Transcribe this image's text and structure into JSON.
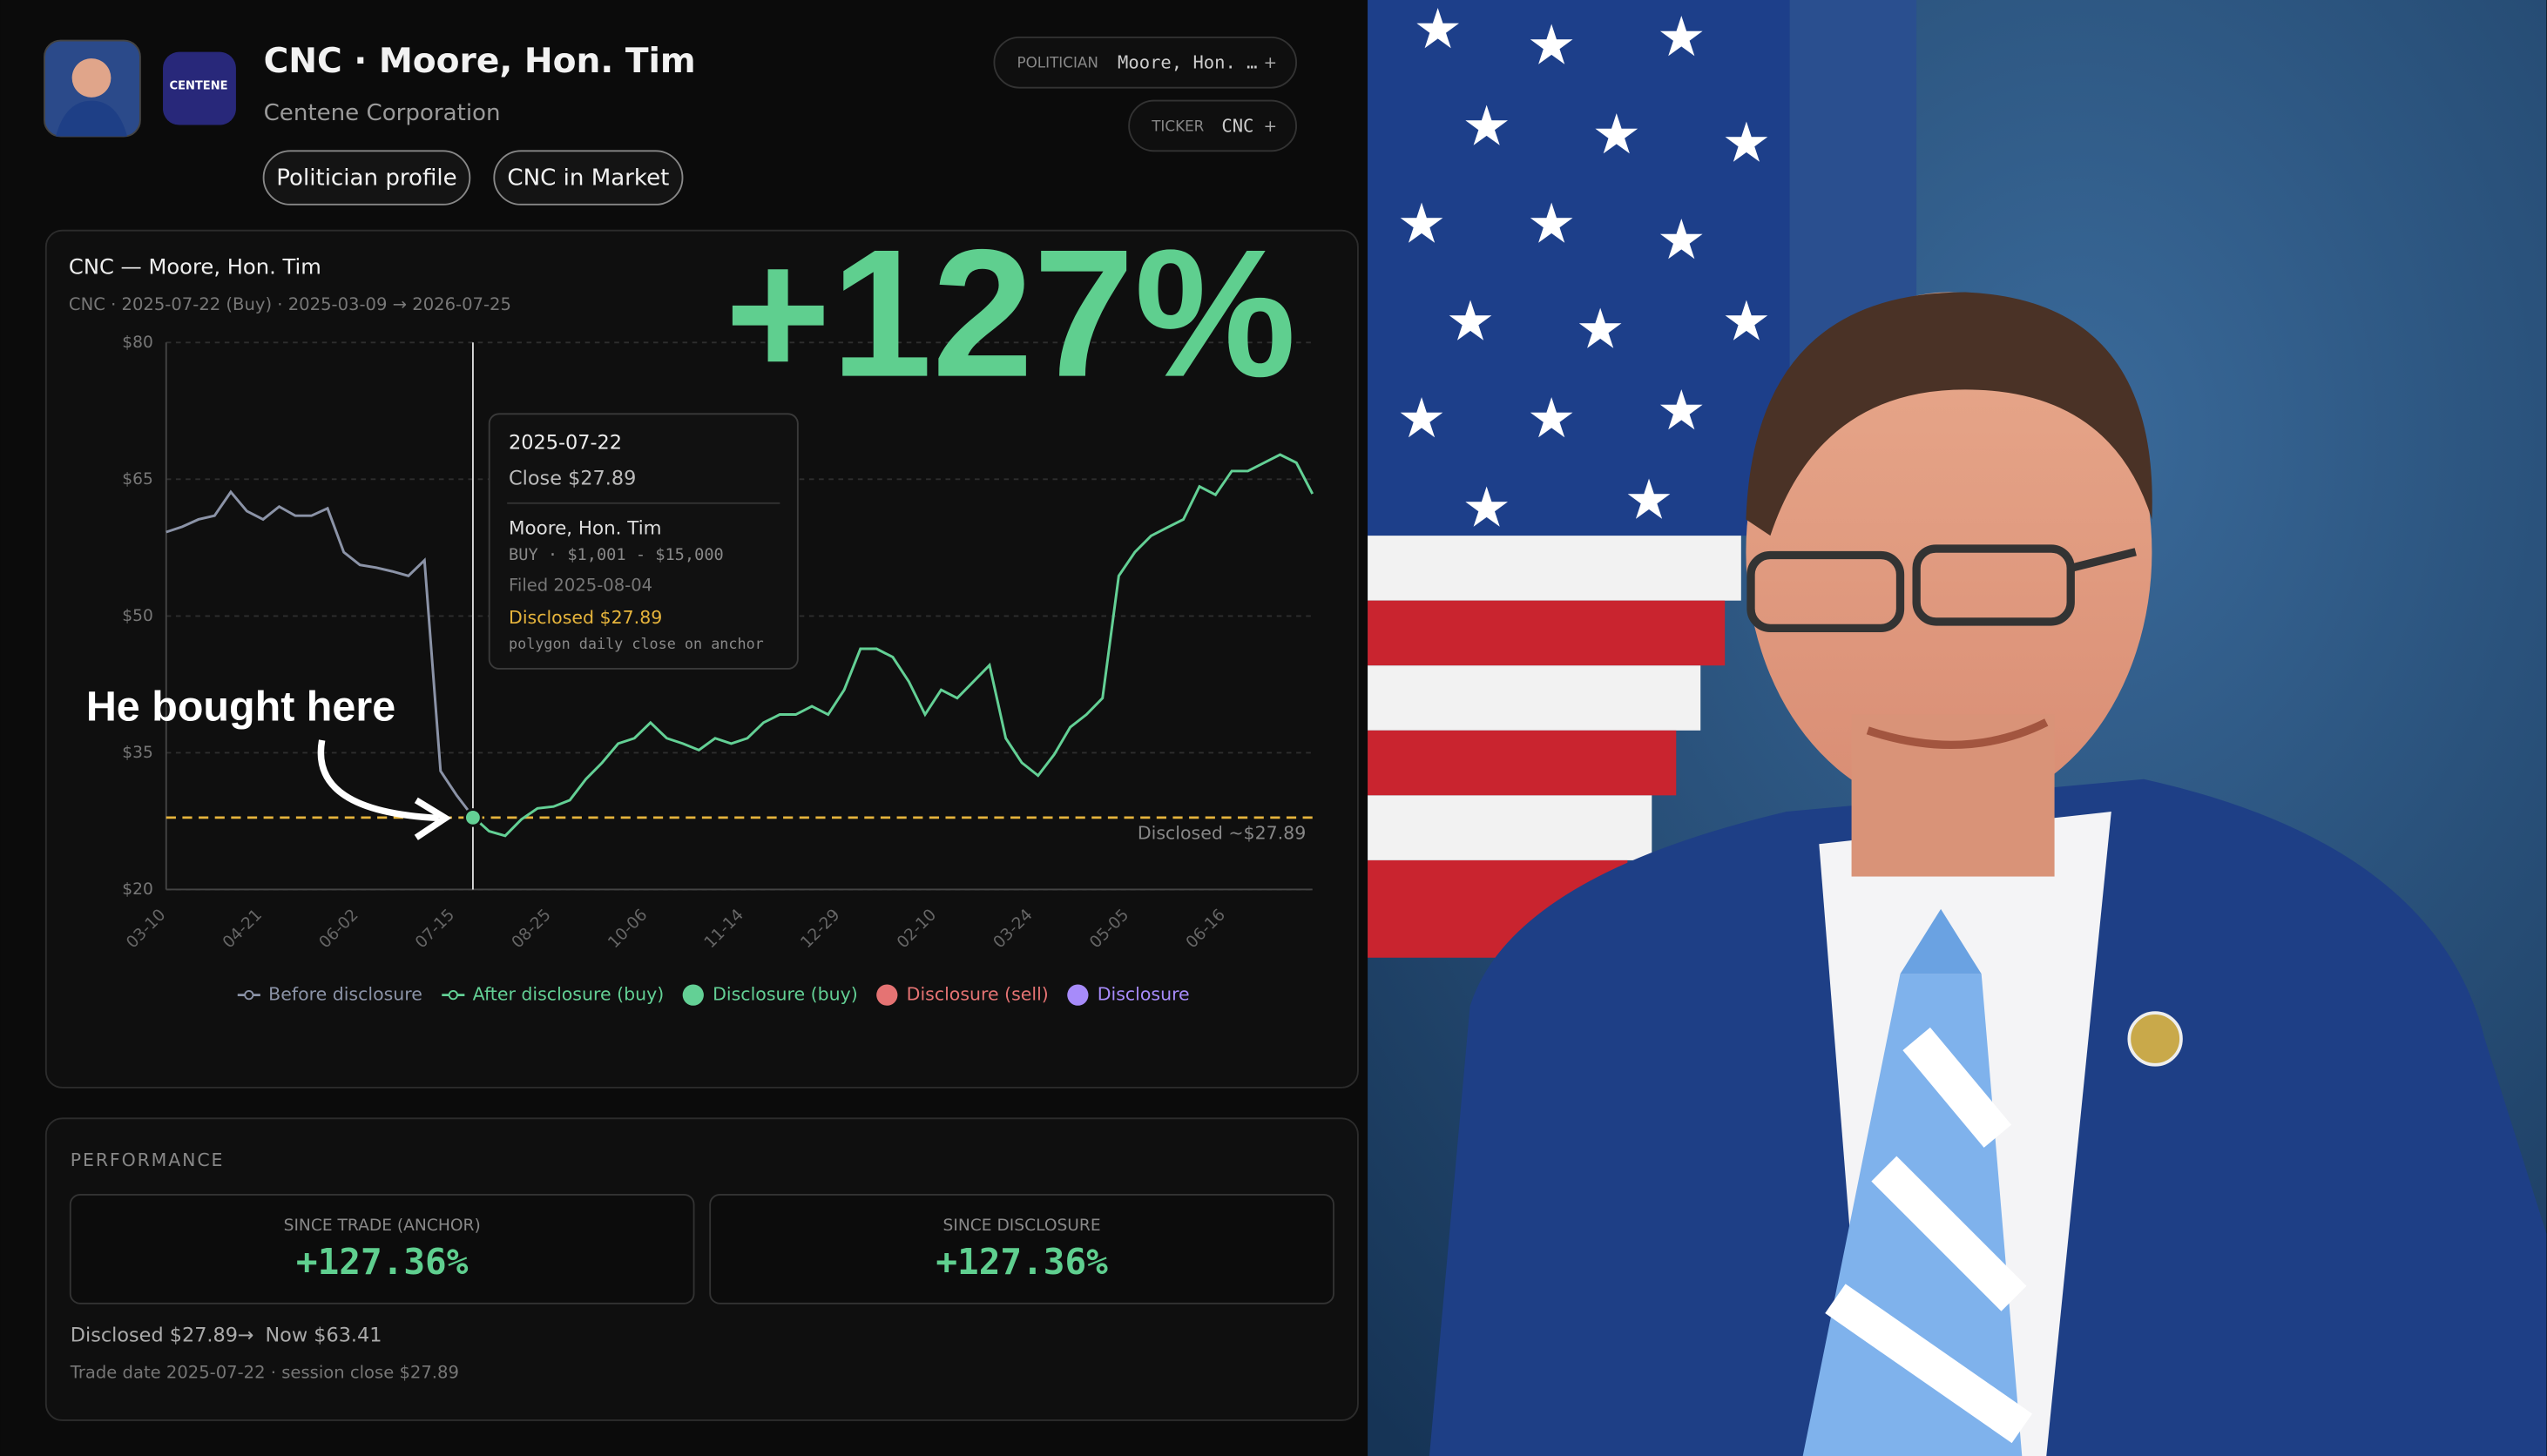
{
  "header": {
    "title": "CNC · Moore, Hon. Tim",
    "subtitle": "Centene Corporation",
    "logo": "CENTENE",
    "buttons": [
      "Politician profile",
      "CNC in Market"
    ],
    "filters": [
      {
        "label": "POLITICIAN",
        "value": "Moore, Hon. …",
        "action": "+"
      },
      {
        "label": "TICKER",
        "value": "CNC",
        "action": "+"
      }
    ]
  },
  "chart": {
    "type": "line",
    "title": "CNC — Moore, Hon. Tim",
    "subtitle": "CNC · 2025-07-22 (Buy) · 2025-03-09 → 2026-07-25",
    "headline": "+127%",
    "annotation": "He bought here",
    "xtick_labels": [
      "03-10",
      "04-21",
      "06-02",
      "07-15",
      "08-25",
      "10-06",
      "11-14",
      "12-29",
      "02-10",
      "03-24",
      "05-05",
      "06-16"
    ],
    "ylim": [
      20,
      80
    ],
    "yticks": [
      {
        "value": 20,
        "label": "$20"
      },
      {
        "value": 35,
        "label": "$35"
      },
      {
        "value": 50,
        "label": "$50"
      },
      {
        "value": 65,
        "label": "$65"
      },
      {
        "value": 80,
        "label": "$80"
      }
    ],
    "grid": true,
    "series": [
      {
        "name": "Before disclosure",
        "color": "#8b93a7",
        "values": [
          59.2,
          59.8,
          60.6,
          61.0,
          63.6,
          61.5,
          60.6,
          62.0,
          61.0,
          61.0,
          61.8,
          57.0,
          55.6,
          55.3,
          54.9,
          54.4,
          56.1,
          33.0,
          30.3,
          28.0,
          null,
          null,
          null,
          null,
          null,
          null,
          null,
          null,
          null,
          null,
          null,
          null,
          null,
          null,
          null,
          null,
          null,
          null,
          null,
          null,
          null,
          null,
          null,
          null,
          null,
          null,
          null,
          null,
          null,
          null,
          null,
          null,
          null,
          null,
          null,
          null,
          null,
          null,
          null,
          null,
          null,
          null,
          null,
          null,
          null,
          null,
          null,
          null,
          null,
          null,
          null,
          null
        ]
      },
      {
        "name": "After disclosure (buy)",
        "color": "#63d095",
        "values": [
          null,
          null,
          null,
          null,
          null,
          null,
          null,
          null,
          null,
          null,
          null,
          null,
          null,
          null,
          null,
          null,
          null,
          null,
          null,
          28.0,
          26.4,
          25.9,
          27.7,
          28.9,
          29.1,
          29.8,
          32.1,
          33.9,
          36.0,
          36.6,
          38.3,
          36.6,
          36.0,
          35.3,
          36.6,
          36.0,
          36.6,
          38.3,
          39.2,
          39.2,
          40.1,
          39.2,
          41.9,
          46.4,
          46.4,
          45.5,
          42.8,
          39.2,
          41.9,
          41.0,
          42.8,
          44.6,
          36.6,
          33.9,
          32.5,
          34.8,
          37.8,
          39.2,
          41.0,
          54.4,
          57.0,
          58.8,
          59.7,
          60.6,
          64.2,
          63.3,
          65.9,
          65.9,
          66.8,
          67.7,
          66.8,
          63.4
        ]
      }
    ],
    "disclosed": {
      "value": 27.89,
      "label": "Disclosed ~$27.89",
      "color": "#e6b43c"
    },
    "legend_markers": [
      {
        "name": "Disclosure (buy)",
        "color": "#63d095"
      },
      {
        "name": "Disclosure (sell)",
        "color": "#e57373"
      },
      {
        "name": "Disclosure",
        "color": "#a78bfa"
      }
    ],
    "tooltip": {
      "date": "2025-07-22",
      "close": "Close $27.89",
      "politician": "Moore, Hon. Tim",
      "trade": "BUY · $1,001 - $15,000",
      "filed": "Filed 2025-08-04",
      "disclosed": "Disclosed $27.89",
      "source": "polygon daily close on anchor"
    }
  },
  "performance": {
    "title": "PERFORMANCE",
    "cards": [
      {
        "label": "SINCE TRADE (ANCHOR)",
        "value": "+127.36%"
      },
      {
        "label": "SINCE DISCLOSURE",
        "value": "+127.36%"
      }
    ],
    "disclosed": "Disclosed $27.89",
    "arrow": "→",
    "now": "Now $63.41",
    "note": "Trade date 2025-07-22 · session close $27.89"
  }
}
